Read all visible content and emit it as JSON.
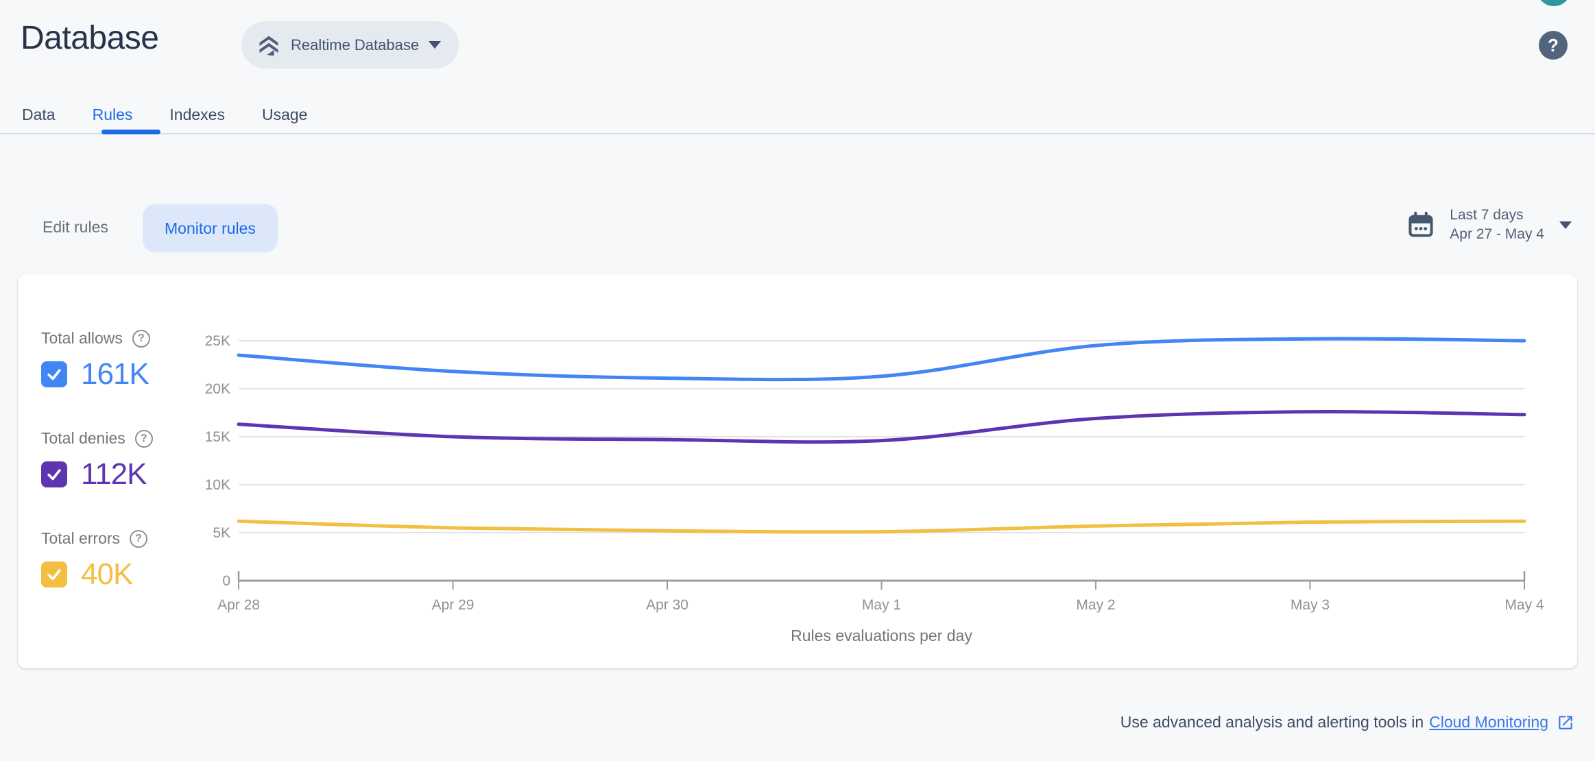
{
  "header": {
    "title": "Database",
    "database_selector_label": "Realtime Database",
    "help_glyph": "?"
  },
  "tabs": [
    {
      "label": "Data",
      "active": false
    },
    {
      "label": "Rules",
      "active": true
    },
    {
      "label": "Indexes",
      "active": false
    },
    {
      "label": "Usage",
      "active": false
    }
  ],
  "toolbar": {
    "edit_rules_label": "Edit rules",
    "monitor_rules_label": "Monitor rules",
    "date_range": {
      "preset": "Last 7 days",
      "range": "Apr 27 - May 4"
    }
  },
  "chart_data": {
    "type": "line",
    "x": [
      "Apr 28",
      "Apr 29",
      "Apr 30",
      "May 1",
      "May 2",
      "May 3",
      "May 4"
    ],
    "series": [
      {
        "name": "Total allows",
        "total": "161K",
        "color": "#4285f4",
        "values": [
          23500,
          21800,
          21100,
          21300,
          24500,
          25200,
          25000
        ]
      },
      {
        "name": "Total denies",
        "total": "112K",
        "color": "#5e35b1",
        "values": [
          16300,
          15000,
          14700,
          14600,
          16900,
          17600,
          17300
        ]
      },
      {
        "name": "Total errors",
        "total": "40K",
        "color": "#f2bf42",
        "values": [
          6200,
          5500,
          5200,
          5100,
          5700,
          6100,
          6200
        ]
      }
    ],
    "yticks": [
      "0",
      "5K",
      "10K",
      "15K",
      "20K",
      "25K"
    ],
    "ylim": [
      0,
      25000
    ],
    "xlabel": "Rules evaluations per day",
    "grid": true,
    "legend_position": "left"
  },
  "footer": {
    "text": "Use advanced analysis and alerting tools in",
    "link_label": "Cloud Monitoring"
  },
  "colors": {
    "accent_blue": "#1e6ae4",
    "grid": "#e3e3e3",
    "axis": "#9e9e9e",
    "axis_text": "#8d9297",
    "xlabel_text": "#757575"
  }
}
